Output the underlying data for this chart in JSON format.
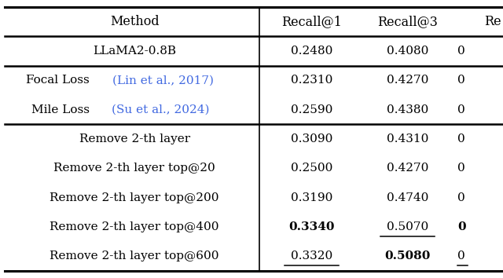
{
  "columns": [
    "Method",
    "Recall@1",
    "Recall@3",
    "Re"
  ],
  "rows": [
    {
      "method": "LLaMA2-0.8B",
      "method_has_citation": false,
      "method_plain": "LLaMA2-0.8B",
      "method_before_cite": "",
      "method_cite": "",
      "r1": "0.2480",
      "r3": "0.4080",
      "r_extra": "0",
      "group": 0,
      "bold_r1": false,
      "bold_r3": false,
      "underline_r1": false,
      "underline_r3": false,
      "bold_r_extra": false,
      "underline_r_extra": false
    },
    {
      "method": "Focal Loss (Lin et al., 2017)",
      "method_has_citation": true,
      "method_plain": "Focal Loss ",
      "method_before_cite": "Focal Loss ",
      "method_cite": "(Lin et al., 2017)",
      "r1": "0.2310",
      "r3": "0.4270",
      "r_extra": "0",
      "group": 1,
      "bold_r1": false,
      "bold_r3": false,
      "underline_r1": false,
      "underline_r3": false,
      "bold_r_extra": false,
      "underline_r_extra": false
    },
    {
      "method": "Mile Loss (Su et al., 2024)",
      "method_has_citation": true,
      "method_plain": "Mile Loss ",
      "method_before_cite": "Mile Loss ",
      "method_cite": "(Su et al., 2024)",
      "r1": "0.2590",
      "r3": "0.4380",
      "r_extra": "0",
      "group": 1,
      "bold_r1": false,
      "bold_r3": false,
      "underline_r1": false,
      "underline_r3": false,
      "bold_r_extra": false,
      "underline_r_extra": false
    },
    {
      "method": "Remove 2-th layer",
      "method_has_citation": false,
      "method_plain": "Remove 2-th layer",
      "method_before_cite": "",
      "method_cite": "",
      "r1": "0.3090",
      "r3": "0.4310",
      "r_extra": "0",
      "group": 2,
      "bold_r1": false,
      "bold_r3": false,
      "underline_r1": false,
      "underline_r3": false,
      "bold_r_extra": false,
      "underline_r_extra": false
    },
    {
      "method": "Remove 2-th layer top@20",
      "method_has_citation": false,
      "method_plain": "Remove 2-th layer top@20",
      "method_before_cite": "",
      "method_cite": "",
      "r1": "0.2500",
      "r3": "0.4270",
      "r_extra": "0",
      "group": 2,
      "bold_r1": false,
      "bold_r3": false,
      "underline_r1": false,
      "underline_r3": false,
      "bold_r_extra": false,
      "underline_r_extra": false
    },
    {
      "method": "Remove 2-th layer top@200",
      "method_has_citation": false,
      "method_plain": "Remove 2-th layer top@200",
      "method_before_cite": "",
      "method_cite": "",
      "r1": "0.3190",
      "r3": "0.4740",
      "r_extra": "0",
      "group": 2,
      "bold_r1": false,
      "bold_r3": false,
      "underline_r1": false,
      "underline_r3": false,
      "bold_r_extra": false,
      "underline_r_extra": false
    },
    {
      "method": "Remove 2-th layer top@400",
      "method_has_citation": false,
      "method_plain": "Remove 2-th layer top@400",
      "method_before_cite": "",
      "method_cite": "",
      "r1": "0.3340",
      "r3": "0.5070",
      "r_extra": "0",
      "group": 2,
      "bold_r1": true,
      "bold_r3": false,
      "underline_r1": false,
      "underline_r3": true,
      "bold_r_extra": true,
      "underline_r_extra": false
    },
    {
      "method": "Remove 2-th layer top@600",
      "method_has_citation": false,
      "method_plain": "Remove 2-th layer top@600",
      "method_before_cite": "",
      "method_cite": "",
      "r1": "0.3320",
      "r3": "0.5080",
      "r_extra": "0",
      "group": 2,
      "bold_r1": false,
      "bold_r3": true,
      "underline_r1": true,
      "underline_r3": false,
      "bold_r_extra": false,
      "underline_r_extra": true
    }
  ],
  "citation_color": "#4169E1",
  "font_size": 11.0,
  "header_font_size": 11.5,
  "fig_width": 6.4,
  "fig_height": 3.54
}
